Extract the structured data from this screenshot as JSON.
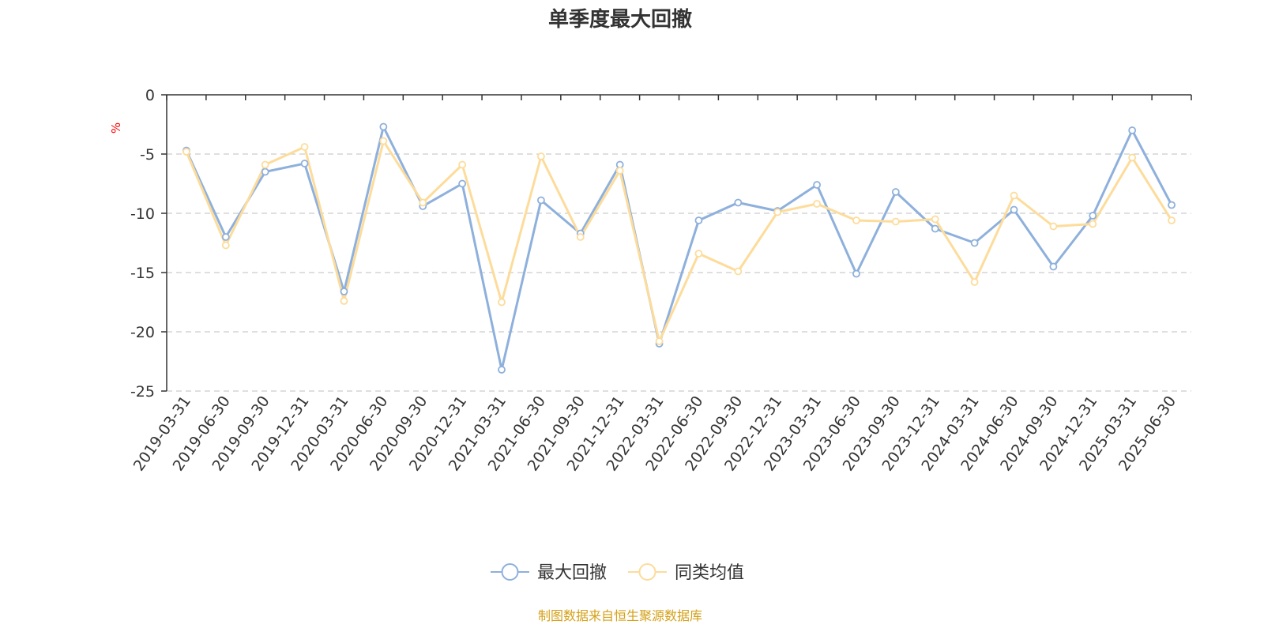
{
  "chart_data": {
    "type": "line",
    "title": "单季度最大回撤",
    "ylabel": "%",
    "ylim": [
      -25,
      0
    ],
    "yticks": [
      0,
      -5,
      -10,
      -15,
      -20,
      -25
    ],
    "grid": true,
    "legend_position": "bottom-center",
    "categories": [
      "2019-03-31",
      "2019-06-30",
      "2019-09-30",
      "2019-12-31",
      "2020-03-31",
      "2020-06-30",
      "2020-09-30",
      "2020-12-31",
      "2021-03-31",
      "2021-06-30",
      "2021-09-30",
      "2021-12-31",
      "2022-03-31",
      "2022-06-30",
      "2022-09-30",
      "2022-12-31",
      "2023-03-31",
      "2023-06-30",
      "2023-09-30",
      "2023-12-31",
      "2024-03-31",
      "2024-06-30",
      "2024-09-30",
      "2024-12-31",
      "2025-03-31",
      "2025-06-30"
    ],
    "series": [
      {
        "name": "最大回撤",
        "color": "#8eb0dc",
        "values": [
          -4.7,
          -12.0,
          -6.5,
          -5.8,
          -16.6,
          -2.7,
          -9.4,
          -7.5,
          -23.2,
          -8.9,
          -11.7,
          -5.9,
          -21.0,
          -10.6,
          -9.1,
          -9.8,
          -7.6,
          -15.1,
          -8.2,
          -11.3,
          -12.5,
          -9.7,
          -14.5,
          -10.2,
          -3.0,
          -9.3
        ]
      },
      {
        "name": "同类均值",
        "color": "#fddc9b",
        "values": [
          -4.8,
          -12.7,
          -5.9,
          -4.4,
          -17.4,
          -3.9,
          -9.1,
          -5.9,
          -17.5,
          -5.2,
          -12.0,
          -6.4,
          -20.8,
          -13.4,
          -14.9,
          -9.9,
          -9.2,
          -10.6,
          -10.7,
          -10.5,
          -15.8,
          -8.5,
          -11.1,
          -10.9,
          -5.3,
          -10.6
        ]
      }
    ]
  },
  "source_text": "制图数据来自恒生聚源数据库",
  "colors": {
    "axis": "#333333",
    "grid": "#cccccc",
    "unit_label": "#ff0000",
    "source_text": "#d4a017"
  }
}
